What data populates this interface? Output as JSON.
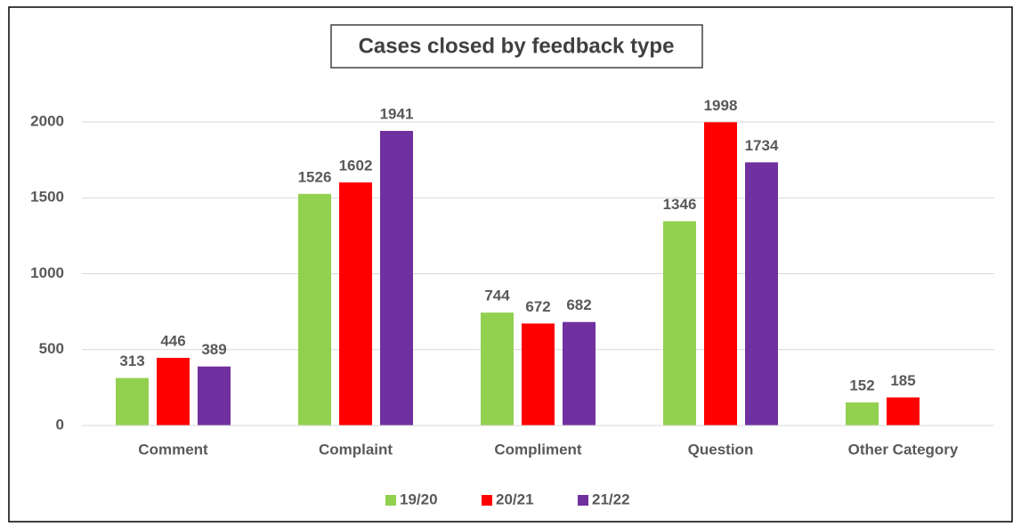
{
  "chart_data": {
    "type": "bar",
    "title": "Cases closed by feedback type",
    "categories": [
      "Comment",
      "Complaint",
      "Compliment",
      "Question",
      "Other Category"
    ],
    "series": [
      {
        "name": "19/20",
        "color": "#92d050",
        "values": [
          313,
          1526,
          744,
          1346,
          152
        ]
      },
      {
        "name": "20/21",
        "color": "#ff0000",
        "values": [
          446,
          1602,
          672,
          1998,
          185
        ]
      },
      {
        "name": "21/22",
        "color": "#7030a0",
        "values": [
          389,
          1941,
          682,
          1734,
          null
        ]
      }
    ],
    "ylim": [
      0,
      2000
    ],
    "yticks": [
      0,
      500,
      1000,
      1500,
      2000
    ],
    "grid": true,
    "legend": "bottom"
  }
}
